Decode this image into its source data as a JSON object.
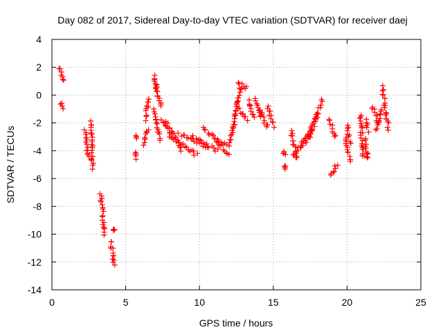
{
  "chart_data": {
    "type": "scatter",
    "title": "Day 082 of 2017, Sidereal Day-to-day VTEC variation (SDTVAR) for receiver daej",
    "xlabel": "GPS time / hours",
    "ylabel": "SDTVAR / TECUs",
    "xlim": [
      0,
      25
    ],
    "ylim": [
      -14,
      4
    ],
    "xticks": [
      0,
      5,
      10,
      15,
      20,
      25
    ],
    "yticks": [
      4,
      2,
      0,
      -2,
      -4,
      -6,
      -8,
      -10,
      -12,
      -14
    ],
    "grid": true,
    "marker": "+",
    "color": "#ff0000",
    "series": [
      {
        "name": "SDTVAR",
        "segments": [
          {
            "x0": 0.55,
            "x1": 0.75,
            "y0": 2.0,
            "y1": 1.0
          },
          {
            "x0": 0.6,
            "x1": 0.7,
            "y0": -0.6,
            "y1": -0.9
          },
          {
            "x0": 2.25,
            "x1": 2.45,
            "y0": -2.5,
            "y1": -4.5
          },
          {
            "x0": 2.65,
            "x1": 2.75,
            "y0": -1.9,
            "y1": -5.3
          },
          {
            "x0": 3.3,
            "x1": 3.6,
            "y0": -7.0,
            "y1": -10.0
          },
          {
            "x0": 4.0,
            "x1": 4.2,
            "y0": -10.5,
            "y1": -12.2
          },
          {
            "x0": 4.2,
            "x1": 4.2,
            "y0": -9.7,
            "y1": -9.7
          },
          {
            "x0": 5.6,
            "x1": 5.7,
            "y0": -4.0,
            "y1": -4.6
          },
          {
            "x0": 5.7,
            "x1": 5.7,
            "y0": -3.0,
            "y1": -3.0
          },
          {
            "x0": 6.2,
            "x1": 6.5,
            "y0": -3.6,
            "y1": -2.4
          },
          {
            "x0": 6.3,
            "x1": 6.6,
            "y0": -1.8,
            "y1": -0.3
          },
          {
            "x0": 6.9,
            "x1": 7.2,
            "y0": 1.4,
            "y1": 0.0
          },
          {
            "x0": 7.0,
            "x1": 7.4,
            "y0": 0.8,
            "y1": -0.8
          },
          {
            "x0": 6.9,
            "x1": 7.3,
            "y0": -1.0,
            "y1": -3.2
          },
          {
            "x0": 7.4,
            "x1": 8.2,
            "y0": -1.8,
            "y1": -3.0
          },
          {
            "x0": 7.8,
            "x1": 8.8,
            "y0": -2.0,
            "y1": -4.0
          },
          {
            "x0": 8.0,
            "x1": 9.8,
            "y0": -3.0,
            "y1": -4.3
          },
          {
            "x0": 8.6,
            "x1": 10.5,
            "y0": -2.8,
            "y1": -3.7
          },
          {
            "x0": 9.5,
            "x1": 11.2,
            "y0": -3.0,
            "y1": -4.0
          },
          {
            "x0": 10.2,
            "x1": 11.8,
            "y0": -2.4,
            "y1": -3.6
          },
          {
            "x0": 11.0,
            "x1": 12.0,
            "y0": -3.2,
            "y1": -4.3
          },
          {
            "x0": 12.0,
            "x1": 12.3,
            "y0": -3.6,
            "y1": -2.2
          },
          {
            "x0": 12.3,
            "x1": 12.6,
            "y0": -2.4,
            "y1": -0.4
          },
          {
            "x0": 12.5,
            "x1": 12.8,
            "y0": -0.6,
            "y1": 0.6
          },
          {
            "x0": 12.6,
            "x1": 13.2,
            "y0": 0.9,
            "y1": 0.5
          },
          {
            "x0": 12.5,
            "x1": 13.2,
            "y0": -0.8,
            "y1": -1.8
          },
          {
            "x0": 13.3,
            "x1": 13.7,
            "y0": -0.4,
            "y1": -1.6
          },
          {
            "x0": 13.8,
            "x1": 14.2,
            "y0": -0.3,
            "y1": -1.6
          },
          {
            "x0": 14.1,
            "x1": 14.6,
            "y0": -1.0,
            "y1": -2.4
          },
          {
            "x0": 14.6,
            "x1": 15.0,
            "y0": -0.8,
            "y1": -2.2
          },
          {
            "x0": 15.7,
            "x1": 15.8,
            "y0": -4.0,
            "y1": -4.3
          },
          {
            "x0": 15.8,
            "x1": 15.8,
            "y0": -5.2,
            "y1": -5.2
          },
          {
            "x0": 16.2,
            "x1": 16.6,
            "y0": -2.6,
            "y1": -4.6
          },
          {
            "x0": 16.4,
            "x1": 17.2,
            "y0": -4.4,
            "y1": -3.0
          },
          {
            "x0": 16.8,
            "x1": 17.6,
            "y0": -3.8,
            "y1": -2.4
          },
          {
            "x0": 17.2,
            "x1": 18.0,
            "y0": -3.4,
            "y1": -1.4
          },
          {
            "x0": 17.5,
            "x1": 18.3,
            "y0": -3.0,
            "y1": -0.4
          },
          {
            "x0": 18.8,
            "x1": 19.2,
            "y0": -1.8,
            "y1": -3.0
          },
          {
            "x0": 18.9,
            "x1": 19.3,
            "y0": -5.8,
            "y1": -5.0
          },
          {
            "x0": 19.9,
            "x1": 20.2,
            "y0": -3.0,
            "y1": -4.7
          },
          {
            "x0": 20.0,
            "x1": 20.2,
            "y0": -2.2,
            "y1": -3.4
          },
          {
            "x0": 20.9,
            "x1": 21.1,
            "y0": -1.4,
            "y1": -4.5
          },
          {
            "x0": 21.2,
            "x1": 21.4,
            "y0": -3.2,
            "y1": -4.6
          },
          {
            "x0": 21.3,
            "x1": 21.4,
            "y0": -1.8,
            "y1": -2.6
          },
          {
            "x0": 21.7,
            "x1": 22.1,
            "y0": -0.8,
            "y1": -1.9
          },
          {
            "x0": 22.0,
            "x1": 22.3,
            "y0": -2.5,
            "y1": -1.0
          },
          {
            "x0": 22.4,
            "x1": 22.8,
            "y0": 0.6,
            "y1": -2.4
          }
        ]
      }
    ]
  }
}
